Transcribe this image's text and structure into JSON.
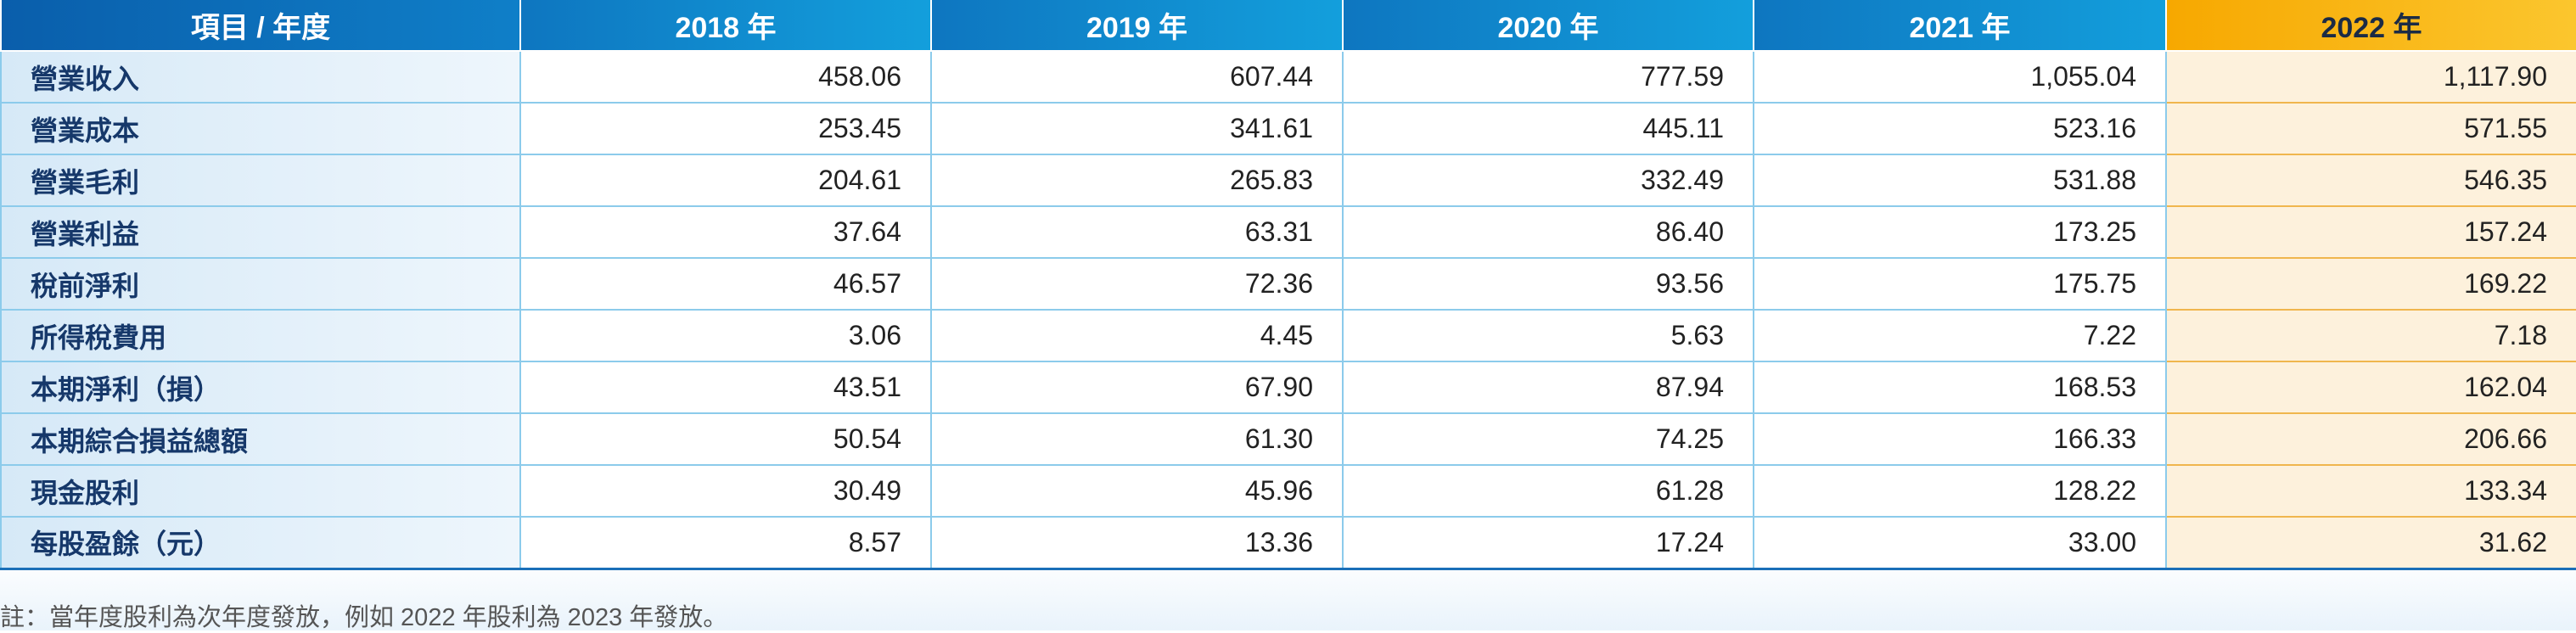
{
  "table": {
    "header": [
      "項目 / 年度",
      "2018 年",
      "2019 年",
      "2020 年",
      "2021 年",
      "2022 年"
    ],
    "rows": [
      [
        "營業收入",
        "458.06",
        "607.44",
        "777.59",
        "1,055.04",
        "1,117.90"
      ],
      [
        "營業成本",
        "253.45",
        "341.61",
        "445.11",
        "523.16",
        "571.55"
      ],
      [
        "營業毛利",
        "204.61",
        "265.83",
        "332.49",
        "531.88",
        "546.35"
      ],
      [
        "營業利益",
        "37.64",
        "63.31",
        "86.40",
        "173.25",
        "157.24"
      ],
      [
        "稅前淨利",
        "46.57",
        "72.36",
        "93.56",
        "175.75",
        "169.22"
      ],
      [
        "所得稅費用",
        "3.06",
        "4.45",
        "5.63",
        "7.22",
        "7.18"
      ],
      [
        "本期淨利（損）",
        "43.51",
        "67.90",
        "87.94",
        "168.53",
        "162.04"
      ],
      [
        "本期綜合損益總額",
        "50.54",
        "61.30",
        "74.25",
        "166.33",
        "206.66"
      ],
      [
        "現金股利",
        "30.49",
        "45.96",
        "61.28",
        "128.22",
        "133.34"
      ],
      [
        "每股盈餘（元）",
        "8.57",
        "13.36",
        "17.24",
        "33.00",
        "31.62"
      ]
    ]
  },
  "note": "註：當年度股利為次年度發放，例如 2022 年股利為 2023 年發放。"
}
